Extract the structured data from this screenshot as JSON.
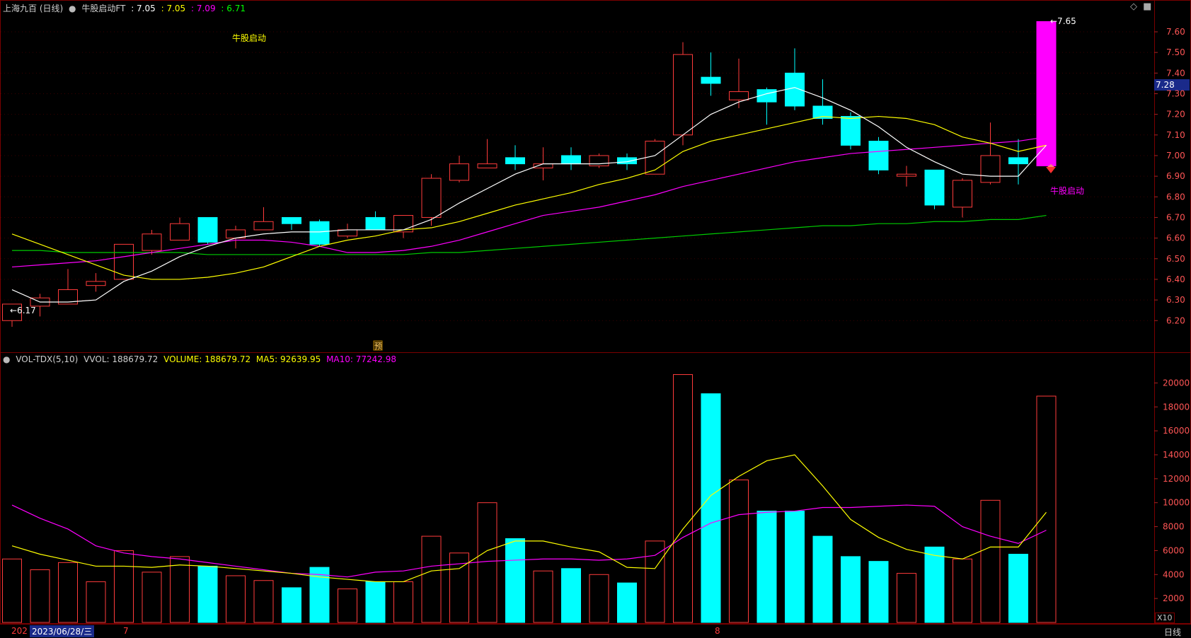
{
  "header": {
    "stock_name": "上海九百 (日线)",
    "indicator": "牛股启动FT",
    "v1": ": 7.05",
    "v2": ": 7.05",
    "v3": ": 7.09",
    "v4": ": 6.71"
  },
  "vol_header": {
    "name": "VOL-TDX(5,10)",
    "vvol": "VVOL: 188679.72",
    "volume": "VOLUME: 188679.72",
    "ma5": "MA5: 92639.95",
    "ma10": "MA10: 77242.98"
  },
  "annotations": {
    "signal_top": "牛股启动",
    "signal_right": "牛股启动",
    "low_label": "←6.17",
    "high_label": "←7.65",
    "yu_marker": "预",
    "current_price": "7.28"
  },
  "bottom_bar": {
    "year_stub": "202",
    "cursor_date": "2023/06/28/三",
    "month_7": "7",
    "month_8": "8",
    "period": "日线",
    "scale": "X10"
  },
  "colors": {
    "up": "#ff3b3b",
    "down": "#00ffff",
    "last_candle": "#ff00ff",
    "ma5": "#ffffff",
    "ma10": "#ffff00",
    "ma20": "#ff00ff",
    "ma60": "#00cc00"
  },
  "chart_data": [
    {
      "type": "candlestick",
      "y_ticks": [
        "7.60",
        "7.50",
        "7.40",
        "7.30",
        "7.20",
        "7.10",
        "7.00",
        "6.90",
        "6.80",
        "6.70",
        "6.60",
        "6.50",
        "6.40",
        "6.30",
        "6.20"
      ],
      "ylim": [
        6.05,
        7.72
      ],
      "candles": [
        {
          "o": 6.2,
          "h": 6.28,
          "l": 6.17,
          "c": 6.28
        },
        {
          "o": 6.27,
          "h": 6.33,
          "l": 6.22,
          "c": 6.31
        },
        {
          "o": 6.28,
          "h": 6.45,
          "l": 6.28,
          "c": 6.35
        },
        {
          "o": 6.37,
          "h": 6.43,
          "l": 6.34,
          "c": 6.39
        },
        {
          "o": 6.4,
          "h": 6.57,
          "l": 6.4,
          "c": 6.57
        },
        {
          "o": 6.54,
          "h": 6.64,
          "l": 6.52,
          "c": 6.62
        },
        {
          "o": 6.59,
          "h": 6.7,
          "l": 6.59,
          "c": 6.67
        },
        {
          "o": 6.7,
          "h": 6.7,
          "l": 6.57,
          "c": 6.58
        },
        {
          "o": 6.6,
          "h": 6.66,
          "l": 6.55,
          "c": 6.64
        },
        {
          "o": 6.64,
          "h": 6.75,
          "l": 6.64,
          "c": 6.68
        },
        {
          "o": 6.7,
          "h": 6.7,
          "l": 6.64,
          "c": 6.67
        },
        {
          "o": 6.68,
          "h": 6.69,
          "l": 6.56,
          "c": 6.57
        },
        {
          "o": 6.61,
          "h": 6.67,
          "l": 6.6,
          "c": 6.64
        },
        {
          "o": 6.7,
          "h": 6.73,
          "l": 6.64,
          "c": 6.64
        },
        {
          "o": 6.63,
          "h": 6.71,
          "l": 6.6,
          "c": 6.71
        },
        {
          "o": 6.7,
          "h": 6.91,
          "l": 6.66,
          "c": 6.89
        },
        {
          "o": 6.88,
          "h": 7.0,
          "l": 6.87,
          "c": 6.96
        },
        {
          "o": 6.94,
          "h": 7.08,
          "l": 6.94,
          "c": 6.96
        },
        {
          "o": 6.99,
          "h": 7.05,
          "l": 6.93,
          "c": 6.96
        },
        {
          "o": 6.94,
          "h": 7.04,
          "l": 6.88,
          "c": 6.96
        },
        {
          "o": 7.0,
          "h": 7.04,
          "l": 6.93,
          "c": 6.96
        },
        {
          "o": 6.95,
          "h": 7.01,
          "l": 6.94,
          "c": 7.0
        },
        {
          "o": 6.99,
          "h": 7.01,
          "l": 6.93,
          "c": 6.96
        },
        {
          "o": 6.91,
          "h": 7.08,
          "l": 6.91,
          "c": 7.07
        },
        {
          "o": 7.1,
          "h": 7.55,
          "l": 7.05,
          "c": 7.49
        },
        {
          "o": 7.38,
          "h": 7.5,
          "l": 7.29,
          "c": 7.35
        },
        {
          "o": 7.27,
          "h": 7.47,
          "l": 7.23,
          "c": 7.31
        },
        {
          "o": 7.32,
          "h": 7.33,
          "l": 7.15,
          "c": 7.26
        },
        {
          "o": 7.4,
          "h": 7.52,
          "l": 7.22,
          "c": 7.24
        },
        {
          "o": 7.24,
          "h": 7.37,
          "l": 7.15,
          "c": 7.18
        },
        {
          "o": 7.19,
          "h": 7.21,
          "l": 7.03,
          "c": 7.05
        },
        {
          "o": 7.07,
          "h": 7.09,
          "l": 6.91,
          "c": 6.93
        },
        {
          "o": 6.9,
          "h": 6.95,
          "l": 6.85,
          "c": 6.91
        },
        {
          "o": 6.93,
          "h": 6.93,
          "l": 6.74,
          "c": 6.76
        },
        {
          "o": 6.75,
          "h": 6.89,
          "l": 6.7,
          "c": 6.88
        },
        {
          "o": 6.87,
          "h": 7.16,
          "l": 6.86,
          "c": 7.0
        },
        {
          "o": 6.99,
          "h": 7.08,
          "l": 6.86,
          "c": 6.96
        },
        {
          "o": 6.95,
          "h": 7.65,
          "l": 6.95,
          "c": 7.65
        }
      ],
      "ma5": [
        6.35,
        6.29,
        6.29,
        6.3,
        6.39,
        6.44,
        6.51,
        6.56,
        6.6,
        6.62,
        6.63,
        6.63,
        6.64,
        6.64,
        6.64,
        6.69,
        6.77,
        6.84,
        6.91,
        6.96,
        6.96,
        6.96,
        6.97,
        7.0,
        7.1,
        7.2,
        7.26,
        7.3,
        7.33,
        7.28,
        7.22,
        7.14,
        7.04,
        6.97,
        6.91,
        6.9,
        6.9,
        7.05
      ],
      "ma10": [
        6.62,
        6.57,
        6.52,
        6.47,
        6.42,
        6.4,
        6.4,
        6.41,
        6.43,
        6.46,
        6.51,
        6.56,
        6.59,
        6.61,
        6.64,
        6.65,
        6.68,
        6.72,
        6.76,
        6.79,
        6.82,
        6.86,
        6.89,
        6.93,
        7.02,
        7.07,
        7.1,
        7.13,
        7.16,
        7.19,
        7.18,
        7.19,
        7.18,
        7.15,
        7.09,
        7.06,
        7.02,
        7.05
      ],
      "ma20": [
        6.46,
        6.47,
        6.48,
        6.49,
        6.51,
        6.53,
        6.55,
        6.57,
        6.59,
        6.59,
        6.58,
        6.56,
        6.53,
        6.53,
        6.54,
        6.56,
        6.59,
        6.63,
        6.67,
        6.71,
        6.73,
        6.75,
        6.78,
        6.81,
        6.85,
        6.88,
        6.91,
        6.94,
        6.97,
        6.99,
        7.01,
        7.02,
        7.03,
        7.04,
        7.05,
        7.06,
        7.07,
        7.09
      ],
      "ma60": [
        6.54,
        6.54,
        6.53,
        6.53,
        6.53,
        6.53,
        6.53,
        6.52,
        6.52,
        6.52,
        6.52,
        6.52,
        6.52,
        6.52,
        6.52,
        6.53,
        6.53,
        6.54,
        6.55,
        6.56,
        6.57,
        6.58,
        6.59,
        6.6,
        6.61,
        6.62,
        6.63,
        6.64,
        6.65,
        6.66,
        6.66,
        6.67,
        6.67,
        6.68,
        6.68,
        6.69,
        6.69,
        6.71
      ]
    },
    {
      "type": "bar",
      "y_ticks": [
        "20000",
        "18000",
        "16000",
        "14000",
        "12000",
        "10000",
        "8000",
        "6000",
        "4000",
        "2000"
      ],
      "ylim": [
        0,
        21500
      ],
      "values": [
        5300,
        4400,
        5000,
        3400,
        6000,
        4200,
        5500,
        4700,
        3900,
        3500,
        2900,
        4600,
        2800,
        3400,
        3400,
        7200,
        5800,
        10000,
        7000,
        4300,
        4500,
        4000,
        3300,
        6800,
        20700,
        19100,
        11900,
        9300,
        9300,
        7200,
        5500,
        5100,
        4100,
        6300,
        5300,
        10200,
        5700,
        18900
      ],
      "ma5": [
        6400,
        5700,
        5200,
        4700,
        4700,
        4600,
        4800,
        4700,
        4500,
        4300,
        4100,
        3800,
        3600,
        3400,
        3400,
        4300,
        4500,
        6000,
        6800,
        6800,
        6300,
        5900,
        4600,
        4500,
        7800,
        10600,
        12200,
        13500,
        14000,
        11400,
        8600,
        7100,
        6100,
        5600,
        5300,
        6300,
        6300,
        9200
      ],
      "ma10": [
        9800,
        8700,
        7800,
        6400,
        5800,
        5500,
        5300,
        5000,
        4700,
        4400,
        4100,
        4000,
        3800,
        4200,
        4300,
        4700,
        4900,
        5100,
        5200,
        5300,
        5300,
        5200,
        5300,
        5600,
        7100,
        8300,
        9000,
        9200,
        9300,
        9600,
        9600,
        9700,
        9800,
        9700,
        8000,
        7200,
        6600,
        7700
      ]
    }
  ]
}
